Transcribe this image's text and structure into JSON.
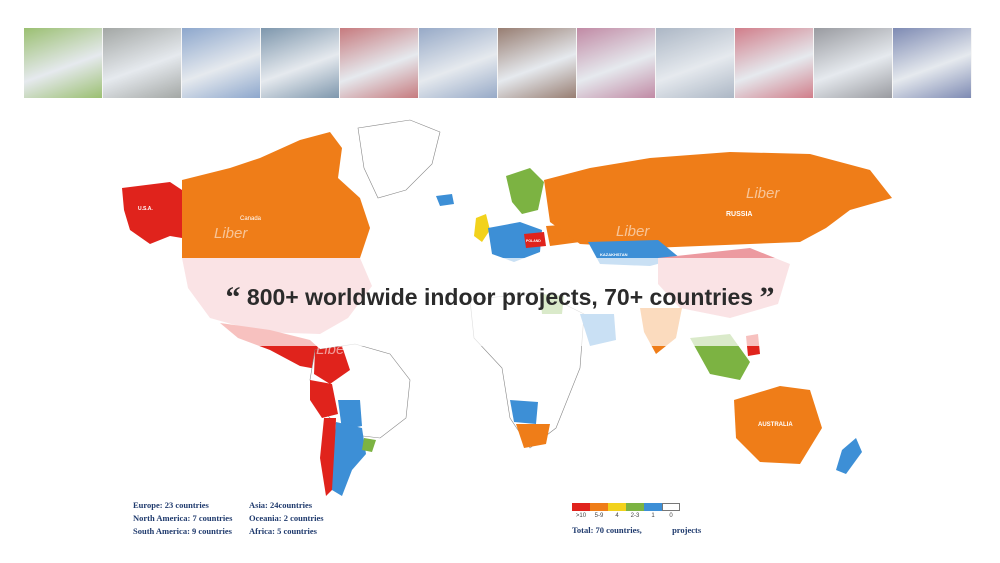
{
  "headline": {
    "open_quote": "“",
    "text": "800+ worldwide indoor projects, 70+ countries",
    "close_quote": "”"
  },
  "photo_strip": {
    "colors": [
      "#7fae4a",
      "#8a8f8c",
      "#6e8fbf",
      "#5a7a96",
      "#b7565b",
      "#7a92b8",
      "#7b5a4b",
      "#b06a8c",
      "#95a3b5",
      "#c45a6a",
      "#7d7f86",
      "#5a6a9e"
    ]
  },
  "map": {
    "colors": {
      "gt10": "#e0231c",
      "r5_9": "#ef7d18",
      "r4": "#f2d21c",
      "r2_3": "#7cb342",
      "r1": "#3d8fd6",
      "r0": "#ffffff"
    },
    "labels": {
      "usa": "U.S.A.",
      "canada": "Canada",
      "russia": "RUSSIA",
      "australia": "AUSTRALIA",
      "kazakhstan": "KAZAKHSTAN",
      "poland": "POLAND"
    },
    "watermark": "Liber"
  },
  "stats": {
    "europe": "Europe: 23 countries",
    "north_america": "North America:  7 countries",
    "south_america": "South America:  9 countries",
    "asia": "Asia: 24countries",
    "oceania": "Oceania:  2 countries",
    "africa": "Africa:  5 countries"
  },
  "legend": {
    "items": [
      {
        "label": ">10",
        "color": "#e0231c"
      },
      {
        "label": "5-9",
        "color": "#ef7d18"
      },
      {
        "label": "4",
        "color": "#f2d21c"
      },
      {
        "label": "2-3",
        "color": "#7cb342"
      },
      {
        "label": "1",
        "color": "#3d8fd6"
      },
      {
        "label": "0",
        "color": "#ffffff"
      }
    ],
    "total_prefix": "Total:  70 countries,",
    "total_suffix": "projects"
  }
}
